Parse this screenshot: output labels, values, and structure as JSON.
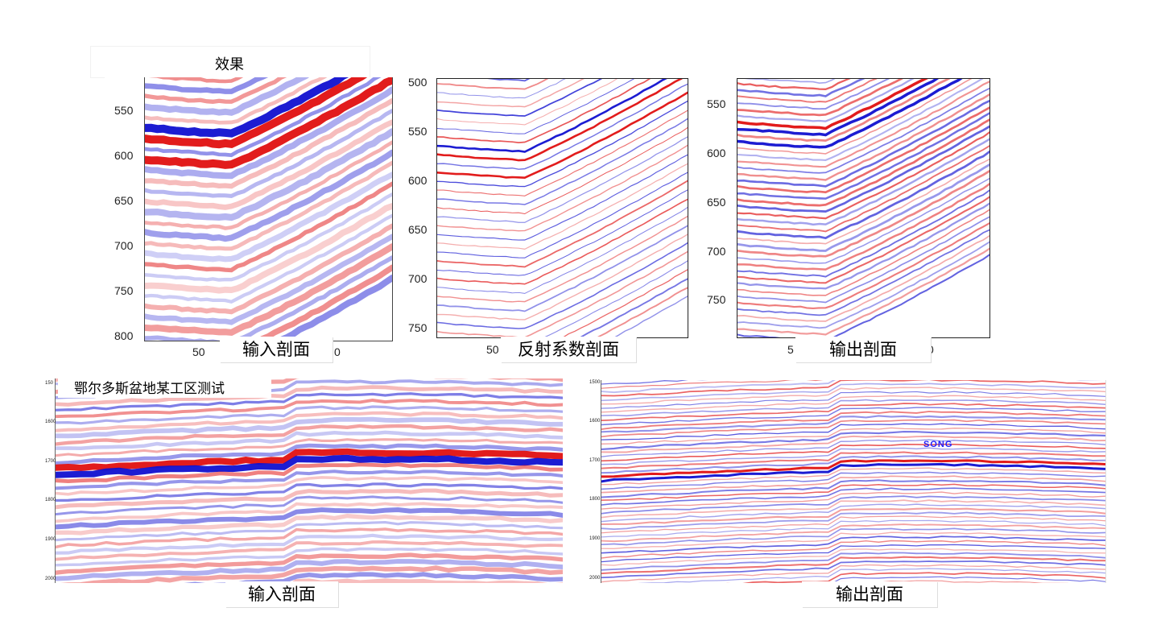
{
  "title": "效果",
  "region_label": "鄂尔多斯盆地某工区测试",
  "panels": [
    {
      "caption": "输入剖面",
      "y_ticks": [
        "550",
        "600",
        "650",
        "700",
        "750",
        "800"
      ],
      "x_ticks": [
        "50",
        "0"
      ]
    },
    {
      "caption": "反射系数剖面",
      "y_ticks": [
        "500",
        "550",
        "600",
        "650",
        "700",
        "750"
      ],
      "x_ticks": [
        "50"
      ]
    },
    {
      "caption": "输出剖面",
      "y_ticks": [
        "550",
        "600",
        "650",
        "700",
        "750"
      ],
      "x_ticks": [
        "5",
        "0"
      ]
    },
    {
      "caption": "输入剖面",
      "y_ticks": [
        "150",
        "1600",
        "1700",
        "1800",
        "1900",
        "2000"
      ]
    },
    {
      "caption": "输出剖面",
      "y_ticks": [
        "1500",
        "1600",
        "1700",
        "1800",
        "1900",
        "2000"
      ],
      "overlay_text": "SONG"
    }
  ],
  "colors": {
    "positive": "#e01010",
    "negative": "#1010d0",
    "background": "#ffffff"
  }
}
